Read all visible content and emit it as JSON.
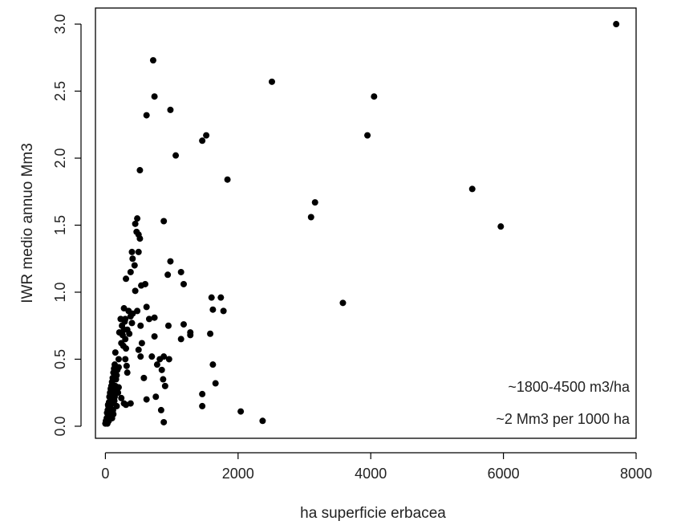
{
  "chart_data": {
    "type": "scatter",
    "title": "",
    "xlabel": "ha superficie erbacea",
    "ylabel": "IWR medio annuo Mm3",
    "xlim": [
      -150,
      8000
    ],
    "ylim": [
      -0.09,
      3.12
    ],
    "xticks": [
      0,
      2000,
      4000,
      6000,
      8000
    ],
    "xtick_labels": [
      "0",
      "2000",
      "4000",
      "6000",
      "8000"
    ],
    "yticks": [
      0.0,
      0.5,
      1.0,
      1.5,
      2.0,
      2.5,
      3.0
    ],
    "ytick_labels": [
      "0.0",
      "0.5",
      "1.0",
      "1.5",
      "2.0",
      "2.5",
      "3.0"
    ],
    "grid": false,
    "legend": "none",
    "point_color": "#000000",
    "annotations": [
      "~1800-4500 m3/ha",
      "~2 Mm3 per 1000 ha"
    ],
    "points": [
      [
        0,
        0.02
      ],
      [
        8,
        0.04
      ],
      [
        15,
        0.03
      ],
      [
        20,
        0.06
      ],
      [
        25,
        0.1
      ],
      [
        30,
        0.02
      ],
      [
        35,
        0.12
      ],
      [
        40,
        0.08
      ],
      [
        45,
        0.15
      ],
      [
        50,
        0.04
      ],
      [
        55,
        0.18
      ],
      [
        60,
        0.22
      ],
      [
        65,
        0.1
      ],
      [
        70,
        0.25
      ],
      [
        75,
        0.14
      ],
      [
        80,
        0.28
      ],
      [
        85,
        0.2
      ],
      [
        90,
        0.3
      ],
      [
        95,
        0.17
      ],
      [
        100,
        0.33
      ],
      [
        105,
        0.24
      ],
      [
        110,
        0.36
      ],
      [
        115,
        0.12
      ],
      [
        120,
        0.4
      ],
      [
        125,
        0.27
      ],
      [
        130,
        0.43
      ],
      [
        135,
        0.19
      ],
      [
        140,
        0.46
      ],
      [
        150,
        0.3
      ],
      [
        160,
        0.35
      ],
      [
        170,
        0.38
      ],
      [
        180,
        0.42
      ],
      [
        190,
        0.25
      ],
      [
        200,
        0.44
      ],
      [
        150,
        0.55
      ],
      [
        200,
        0.5
      ],
      [
        210,
        0.7
      ],
      [
        230,
        0.8
      ],
      [
        250,
        0.75
      ],
      [
        240,
        0.62
      ],
      [
        260,
        0.68
      ],
      [
        280,
        0.72
      ],
      [
        290,
        0.78
      ],
      [
        300,
        0.65
      ],
      [
        310,
        0.58
      ],
      [
        320,
        0.45
      ],
      [
        330,
        0.4
      ],
      [
        280,
        0.17
      ],
      [
        240,
        0.21
      ],
      [
        200,
        0.29
      ],
      [
        170,
        0.15
      ],
      [
        140,
        0.22
      ],
      [
        120,
        0.09
      ],
      [
        100,
        0.06
      ],
      [
        80,
        0.11
      ],
      [
        60,
        0.07
      ],
      [
        40,
        0.16
      ],
      [
        350,
        0.86
      ],
      [
        380,
        0.82
      ],
      [
        400,
        0.77
      ],
      [
        410,
        0.84
      ],
      [
        300,
        0.8
      ],
      [
        330,
        0.72
      ],
      [
        360,
        0.69
      ],
      [
        300,
        0.5
      ],
      [
        270,
        0.6
      ],
      [
        280,
        0.88
      ],
      [
        310,
        1.1
      ],
      [
        380,
        1.15
      ],
      [
        400,
        1.3
      ],
      [
        410,
        1.25
      ],
      [
        440,
        1.2
      ],
      [
        450,
        1.51
      ],
      [
        480,
        1.55
      ],
      [
        470,
        1.45
      ],
      [
        500,
        1.43
      ],
      [
        520,
        1.4
      ],
      [
        500,
        1.3
      ],
      [
        540,
        1.05
      ],
      [
        600,
        1.06
      ],
      [
        450,
        1.01
      ],
      [
        480,
        0.86
      ],
      [
        500,
        0.57
      ],
      [
        530,
        0.52
      ],
      [
        550,
        0.62
      ],
      [
        530,
        0.75
      ],
      [
        580,
        0.36
      ],
      [
        620,
        0.89
      ],
      [
        660,
        0.8
      ],
      [
        700,
        0.52
      ],
      [
        740,
        0.81
      ],
      [
        740,
        0.67
      ],
      [
        780,
        0.46
      ],
      [
        820,
        0.5
      ],
      [
        850,
        0.42
      ],
      [
        870,
        0.35
      ],
      [
        900,
        0.3
      ],
      [
        620,
        0.2
      ],
      [
        760,
        0.22
      ],
      [
        840,
        0.12
      ],
      [
        880,
        0.03
      ],
      [
        380,
        0.17
      ],
      [
        310,
        0.16
      ],
      [
        520,
        1.91
      ],
      [
        620,
        2.32
      ],
      [
        720,
        2.73
      ],
      [
        740,
        2.46
      ],
      [
        980,
        2.36
      ],
      [
        1060,
        2.02
      ],
      [
        880,
        1.53
      ],
      [
        980,
        1.23
      ],
      [
        940,
        1.13
      ],
      [
        1140,
        1.15
      ],
      [
        1180,
        1.06
      ],
      [
        880,
        0.52
      ],
      [
        960,
        0.5
      ],
      [
        1140,
        0.65
      ],
      [
        1180,
        0.76
      ],
      [
        1280,
        0.7
      ],
      [
        1280,
        0.68
      ],
      [
        950,
        0.75
      ],
      [
        1460,
        2.13
      ],
      [
        1520,
        2.17
      ],
      [
        1600,
        0.96
      ],
      [
        1620,
        0.87
      ],
      [
        1580,
        0.69
      ],
      [
        1620,
        0.46
      ],
      [
        1660,
        0.32
      ],
      [
        1740,
        0.96
      ],
      [
        1780,
        0.86
      ],
      [
        1840,
        1.84
      ],
      [
        1460,
        0.24
      ],
      [
        1460,
        0.15
      ],
      [
        2040,
        0.11
      ],
      [
        2370,
        0.04
      ],
      [
        2510,
        2.57
      ],
      [
        3100,
        1.56
      ],
      [
        3160,
        1.67
      ],
      [
        3580,
        0.92
      ],
      [
        3950,
        2.17
      ],
      [
        4050,
        2.46
      ],
      [
        5530,
        1.77
      ],
      [
        5960,
        1.49
      ],
      [
        7700,
        3.0
      ]
    ]
  }
}
